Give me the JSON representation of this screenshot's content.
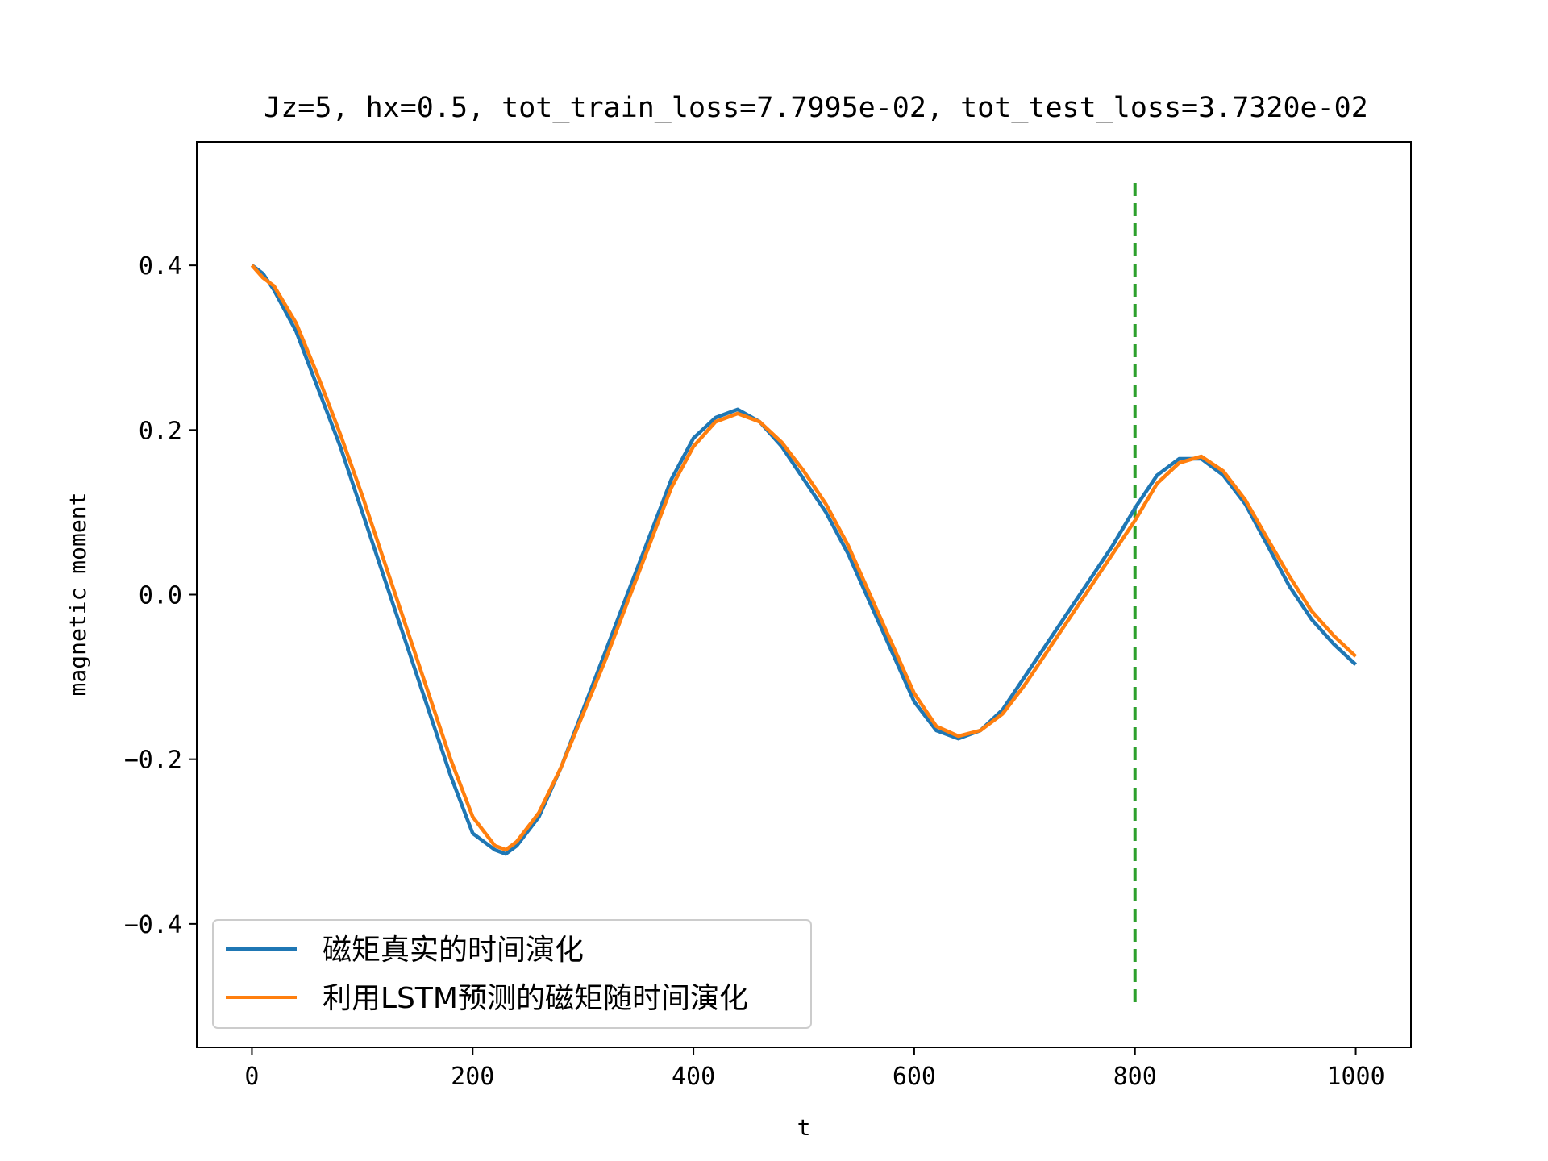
{
  "chart_data": {
    "type": "line",
    "title": "Jz=5, hx=0.5, tot_train_loss=7.7995e-02, tot_test_loss=3.7320e-02",
    "xlabel": "t",
    "ylabel": "magnetic moment",
    "xlim": [
      -50,
      1050
    ],
    "ylim": [
      -0.55,
      0.55
    ],
    "xticks": [
      0,
      200,
      400,
      600,
      800,
      1000
    ],
    "xtick_labels": [
      "0",
      "200",
      "400",
      "600",
      "800",
      "1000"
    ],
    "yticks": [
      -0.4,
      -0.2,
      0.0,
      0.2,
      0.4
    ],
    "ytick_labels": [
      "−0.4",
      "−0.2",
      "0.0",
      "0.2",
      "0.4"
    ],
    "grid": false,
    "legend_position": "lower-left",
    "series": [
      {
        "name": "磁矩真实的时间演化",
        "color": "#1f77b4",
        "x": [
          0,
          10,
          20,
          40,
          60,
          80,
          100,
          120,
          140,
          160,
          180,
          200,
          220,
          230,
          240,
          260,
          280,
          300,
          320,
          340,
          360,
          380,
          400,
          420,
          440,
          460,
          480,
          500,
          520,
          540,
          560,
          580,
          600,
          620,
          640,
          660,
          680,
          700,
          720,
          740,
          760,
          780,
          800,
          820,
          840,
          860,
          880,
          900,
          920,
          940,
          960,
          980,
          1000
        ],
        "values": [
          0.4,
          0.39,
          0.37,
          0.32,
          0.25,
          0.18,
          0.1,
          0.02,
          -0.06,
          -0.14,
          -0.22,
          -0.29,
          -0.31,
          -0.315,
          -0.305,
          -0.27,
          -0.21,
          -0.14,
          -0.07,
          0.0,
          0.07,
          0.14,
          0.19,
          0.215,
          0.225,
          0.21,
          0.18,
          0.14,
          0.1,
          0.05,
          -0.01,
          -0.07,
          -0.13,
          -0.165,
          -0.175,
          -0.165,
          -0.14,
          -0.1,
          -0.06,
          -0.02,
          0.02,
          0.06,
          0.105,
          0.145,
          0.165,
          0.165,
          0.145,
          0.11,
          0.06,
          0.01,
          -0.03,
          -0.06,
          -0.085
        ]
      },
      {
        "name": "利用LSTM预测的磁矩随时间演化",
        "color": "#ff7f0e",
        "x": [
          0,
          10,
          20,
          40,
          60,
          80,
          100,
          120,
          140,
          160,
          180,
          200,
          220,
          230,
          240,
          260,
          280,
          300,
          320,
          340,
          360,
          380,
          400,
          420,
          440,
          460,
          480,
          500,
          520,
          540,
          560,
          580,
          600,
          620,
          640,
          660,
          680,
          700,
          720,
          740,
          760,
          780,
          800,
          820,
          840,
          860,
          880,
          900,
          920,
          940,
          960,
          980,
          1000
        ],
        "values": [
          0.4,
          0.385,
          0.375,
          0.33,
          0.265,
          0.195,
          0.12,
          0.04,
          -0.04,
          -0.12,
          -0.2,
          -0.27,
          -0.305,
          -0.31,
          -0.3,
          -0.265,
          -0.21,
          -0.145,
          -0.08,
          -0.01,
          0.06,
          0.13,
          0.18,
          0.21,
          0.22,
          0.21,
          0.185,
          0.15,
          0.11,
          0.06,
          0.0,
          -0.06,
          -0.12,
          -0.16,
          -0.172,
          -0.165,
          -0.145,
          -0.11,
          -0.07,
          -0.03,
          0.01,
          0.05,
          0.09,
          0.135,
          0.16,
          0.168,
          0.15,
          0.115,
          0.068,
          0.022,
          -0.02,
          -0.05,
          -0.075
        ]
      }
    ],
    "vline": {
      "x": 800,
      "y_range": [
        -0.5,
        0.5
      ],
      "color": "#2ca02c",
      "style": "dashed"
    }
  }
}
